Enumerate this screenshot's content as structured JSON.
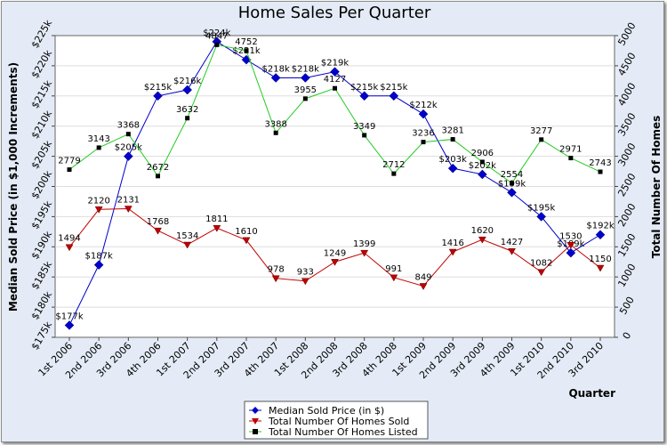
{
  "chart_data": {
    "type": "line",
    "title": "Home Sales Per Quarter",
    "xlabel": "Quarter",
    "ylabel_left": "Median Sold Price (in $1,000 Increments)",
    "ylabel_right": "Total Number Of Homes",
    "categories": [
      "1st 2006",
      "2nd 2006",
      "3rd 2006",
      "4th 2006",
      "1st 2007",
      "2nd 2007",
      "3rd 2007",
      "4th 2007",
      "1st 2008",
      "2nd 2008",
      "3rd 2008",
      "4th 2008",
      "1st 2009",
      "2nd 2009",
      "3rd 2009",
      "4th 2009",
      "1st 2010",
      "2nd 2010",
      "3rd 2010"
    ],
    "ylim_left": [
      175,
      225
    ],
    "ylim_right": [
      0,
      5000
    ],
    "yticks_left": [
      "$175k",
      "$180k",
      "$185k",
      "$190k",
      "$195k",
      "$200k",
      "$205k",
      "$210k",
      "$215k",
      "$220k",
      "$225k"
    ],
    "yticks_right": [
      "0",
      "500",
      "1000",
      "1500",
      "2000",
      "2500",
      "3000",
      "3500",
      "4000",
      "4500",
      "5000"
    ],
    "grid": "horizontal",
    "legend_position": "bottom",
    "series": [
      {
        "name": "Median Sold Price (in $)",
        "axis": "left",
        "color": "#0000cc",
        "marker": "diamond",
        "values": [
          177,
          187,
          205,
          215,
          216,
          224,
          221,
          218,
          218,
          219,
          215,
          215,
          212,
          203,
          202,
          199,
          195,
          189,
          192
        ],
        "labels": [
          "$177k",
          "$187k",
          "$205k",
          "$215k",
          "$216k",
          "$224k",
          "$221k",
          "$218k",
          "$218k",
          "$219k",
          "$215k",
          "$215k",
          "$212k",
          "$203k",
          "$202k",
          "$199k",
          "$195k",
          "$189k",
          "$192k"
        ]
      },
      {
        "name": "Total Number Of Homes Sold",
        "axis": "right",
        "color": "#c00000",
        "marker": "triangle-down",
        "values": [
          1494,
          2120,
          2131,
          1768,
          1534,
          1811,
          1610,
          978,
          933,
          1249,
          1399,
          991,
          849,
          1416,
          1620,
          1427,
          1082,
          1530,
          1150
        ],
        "labels": [
          "1494",
          "2120",
          "2131",
          "1768",
          "1534",
          "1811",
          "1610",
          "978",
          "933",
          "1249",
          "1399",
          "991",
          "849",
          "1416",
          "1620",
          "1427",
          "1082",
          "1530",
          "1150"
        ]
      },
      {
        "name": "Total Number Of Homes Listed",
        "axis": "right",
        "color": "#22cc22",
        "marker": "square",
        "values": [
          2779,
          3143,
          3368,
          2672,
          3632,
          4847,
          4752,
          3388,
          3955,
          4127,
          3349,
          2712,
          3236,
          3281,
          2906,
          2554,
          3277,
          2971,
          2743
        ],
        "labels": [
          "2779",
          "3143",
          "3368",
          "2672",
          "3632",
          "4847",
          "4752",
          "3388",
          "3955",
          "4127",
          "3349",
          "2712",
          "3236",
          "3281",
          "2906",
          "2554",
          "3277",
          "2971",
          "2743"
        ]
      }
    ]
  }
}
